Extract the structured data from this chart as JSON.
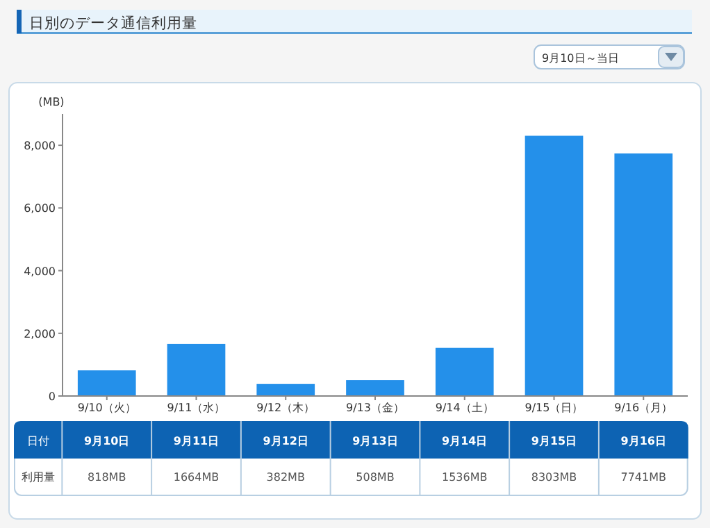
{
  "chart_data": {
    "type": "bar",
    "title": "日別のデータ通信利用量",
    "ylabel": "(MB)",
    "categories": [
      "9/10（火）",
      "9/11（水）",
      "9/12（木）",
      "9/13（金）",
      "9/14（土）",
      "9/15（日）",
      "9/16（月）"
    ],
    "values": [
      818,
      1664,
      382,
      508,
      1536,
      8303,
      7741
    ],
    "color": "#2490ea",
    "value_labels": [
      "818MB",
      "1664MB",
      "382MB",
      "508MB",
      "1536MB",
      "8303MB",
      "7741MB"
    ],
    "ylim": [
      0,
      9000
    ],
    "yticks": [
      0,
      {
        "value": 2000,
        "label": "2,000"
      },
      {
        "value": 4000,
        "label": "4,000"
      },
      {
        "value": 6000,
        "label": "6,000"
      },
      {
        "value": 8000,
        "label": "8,000"
      }
    ],
    "grid": false,
    "annotations": [
      "9月10日～当日",
      "日付",
      "利用量",
      "9月10日",
      "9月11日",
      "9月12日",
      "9月13日",
      "9月14日",
      "9月15日",
      "9月16日"
    ]
  }
}
